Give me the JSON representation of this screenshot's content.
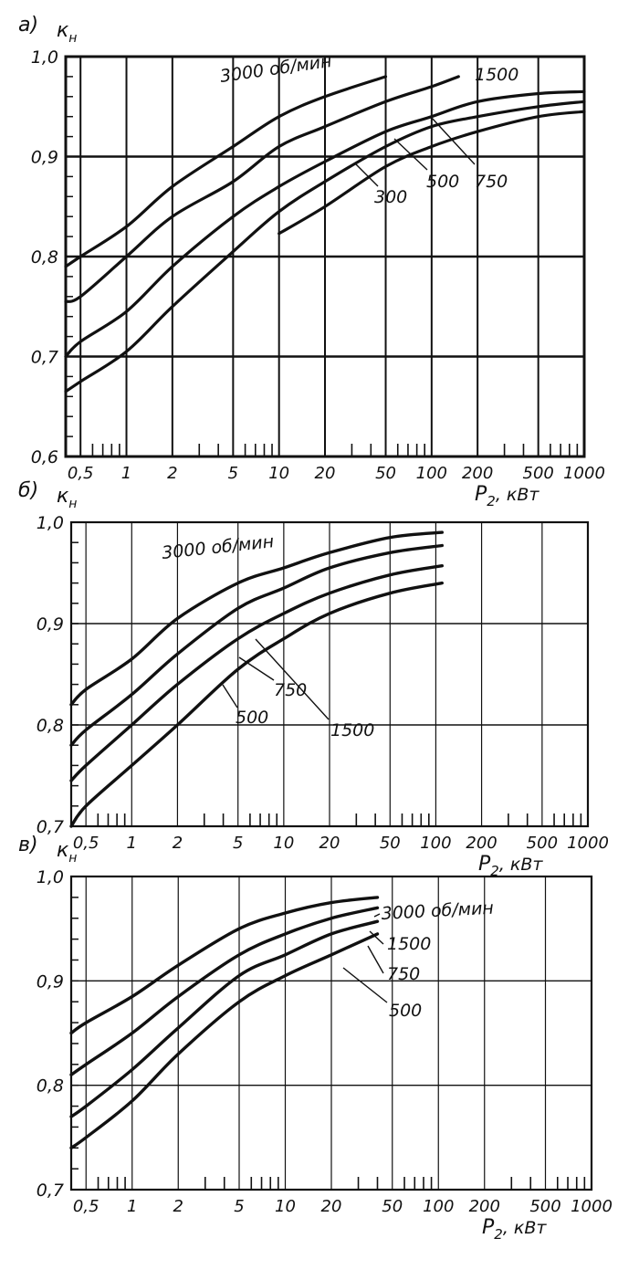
{
  "chart_data": [
    {
      "type": "line",
      "panel_label": "a)",
      "ylabel": "к",
      "ylabel_sub": "н",
      "xlabel": "P",
      "xlabel_sub": "2",
      "xlabel_unit": ", кВт",
      "x_scale": "log",
      "xlim": [
        0.4,
        1000
      ],
      "ylim": [
        0.6,
        1.0
      ],
      "x_ticks": [
        0.5,
        1,
        2,
        5,
        10,
        20,
        50,
        100,
        200,
        500,
        1000
      ],
      "x_tick_labels": [
        "0,5",
        "1",
        "2",
        "5",
        "10",
        "20",
        "50",
        "100",
        "200",
        "500",
        "1000"
      ],
      "y_ticks": [
        0.6,
        0.7,
        0.8,
        0.9,
        1.0
      ],
      "y_tick_labels": [
        "0,6",
        "0,7",
        "0,8",
        "0,9",
        "1,0"
      ],
      "grid": true,
      "series": [
        {
          "name": "3000 об/мин",
          "x": [
            0.4,
            0.5,
            1,
            2,
            5,
            10,
            20,
            50
          ],
          "y": [
            0.79,
            0.8,
            0.83,
            0.87,
            0.91,
            0.94,
            0.96,
            0.98
          ]
        },
        {
          "name": "1500",
          "x": [
            0.4,
            0.5,
            1,
            2,
            5,
            10,
            20,
            50,
            100,
            150
          ],
          "y": [
            0.755,
            0.76,
            0.8,
            0.84,
            0.875,
            0.91,
            0.93,
            0.955,
            0.97,
            0.98
          ]
        },
        {
          "name": "750",
          "x": [
            0.4,
            0.5,
            1,
            2,
            5,
            10,
            20,
            50,
            100,
            200,
            500,
            1000
          ],
          "y": [
            0.7,
            0.715,
            0.745,
            0.79,
            0.84,
            0.87,
            0.895,
            0.925,
            0.94,
            0.955,
            0.963,
            0.965
          ]
        },
        {
          "name": "500",
          "x": [
            0.4,
            0.5,
            1,
            2,
            5,
            10,
            20,
            50,
            100,
            200,
            500,
            1000
          ],
          "y": [
            0.665,
            0.675,
            0.705,
            0.75,
            0.805,
            0.845,
            0.875,
            0.91,
            0.93,
            0.94,
            0.95,
            0.955
          ]
        },
        {
          "name": "300",
          "x": [
            10,
            20,
            50,
            100,
            200,
            500,
            1000
          ],
          "y": [
            0.823,
            0.85,
            0.89,
            0.91,
            0.925,
            0.94,
            0.945
          ]
        }
      ]
    },
    {
      "type": "line",
      "panel_label": "б)",
      "ylabel": "к",
      "ylabel_sub": "н",
      "xlabel": "P",
      "xlabel_sub": "2",
      "xlabel_unit": ", кВт",
      "x_scale": "log",
      "xlim": [
        0.4,
        1000
      ],
      "ylim": [
        0.7,
        1.0
      ],
      "x_ticks": [
        0.5,
        1,
        2,
        5,
        10,
        20,
        50,
        100,
        200,
        500,
        1000
      ],
      "x_tick_labels": [
        "0,5",
        "1",
        "2",
        "5",
        "10",
        "20",
        "50",
        "100",
        "200",
        "500",
        "1000"
      ],
      "y_ticks": [
        0.7,
        0.8,
        0.9,
        1.0
      ],
      "y_tick_labels": [
        "0,7",
        "0,8",
        "0,9",
        "1,0"
      ],
      "grid": true,
      "series": [
        {
          "name": "3000 об/мин",
          "x": [
            0.4,
            0.5,
            1,
            2,
            5,
            10,
            20,
            50,
            110
          ],
          "y": [
            0.82,
            0.835,
            0.865,
            0.905,
            0.94,
            0.955,
            0.97,
            0.985,
            0.99
          ]
        },
        {
          "name": "1500",
          "x": [
            0.4,
            0.5,
            1,
            2,
            5,
            10,
            20,
            50,
            110
          ],
          "y": [
            0.78,
            0.795,
            0.83,
            0.87,
            0.915,
            0.935,
            0.955,
            0.97,
            0.977
          ]
        },
        {
          "name": "750",
          "x": [
            0.4,
            0.5,
            1,
            2,
            5,
            10,
            20,
            50,
            110
          ],
          "y": [
            0.745,
            0.76,
            0.8,
            0.84,
            0.885,
            0.91,
            0.93,
            0.948,
            0.957
          ]
        },
        {
          "name": "500",
          "x": [
            0.4,
            0.5,
            1,
            2,
            5,
            10,
            20,
            50,
            110
          ],
          "y": [
            0.7,
            0.72,
            0.76,
            0.8,
            0.855,
            0.885,
            0.91,
            0.93,
            0.94
          ]
        }
      ]
    },
    {
      "type": "line",
      "panel_label": "в)",
      "ylabel": "к",
      "ylabel_sub": "н",
      "xlabel": "P",
      "xlabel_sub": "2",
      "xlabel_unit": ", кВт",
      "x_scale": "log",
      "xlim": [
        0.4,
        1000
      ],
      "ylim": [
        0.7,
        1.0
      ],
      "x_ticks": [
        0.5,
        1,
        2,
        5,
        10,
        20,
        50,
        100,
        200,
        500,
        1000
      ],
      "x_tick_labels": [
        "0,5",
        "1",
        "2",
        "5",
        "10",
        "20",
        "50",
        "100",
        "200",
        "500",
        "1000"
      ],
      "y_ticks": [
        0.7,
        0.8,
        0.9,
        1.0
      ],
      "y_tick_labels": [
        "0,7",
        "0,8",
        "0,9",
        "1,0"
      ],
      "grid": true,
      "series": [
        {
          "name": "3000 об/мин",
          "x": [
            0.4,
            0.5,
            1,
            2,
            5,
            10,
            20,
            40
          ],
          "y": [
            0.85,
            0.86,
            0.885,
            0.915,
            0.95,
            0.965,
            0.975,
            0.98
          ]
        },
        {
          "name": "1500",
          "x": [
            0.4,
            0.5,
            1,
            2,
            5,
            10,
            20,
            40
          ],
          "y": [
            0.81,
            0.82,
            0.85,
            0.885,
            0.925,
            0.945,
            0.96,
            0.97
          ]
        },
        {
          "name": "750",
          "x": [
            0.4,
            0.5,
            1,
            2,
            5,
            10,
            20,
            40
          ],
          "y": [
            0.77,
            0.78,
            0.815,
            0.855,
            0.905,
            0.925,
            0.945,
            0.957
          ]
        },
        {
          "name": "500",
          "x": [
            0.4,
            0.5,
            1,
            2,
            5,
            10,
            20,
            40
          ],
          "y": [
            0.74,
            0.75,
            0.785,
            0.83,
            0.88,
            0.905,
            0.925,
            0.945
          ]
        }
      ]
    }
  ]
}
